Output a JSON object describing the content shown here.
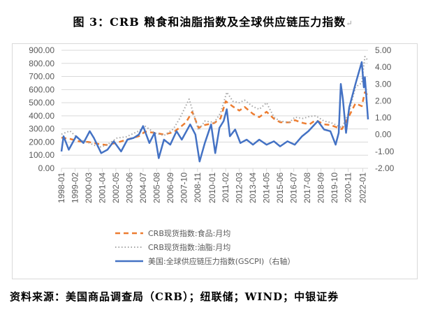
{
  "title": "图 3：CRB 粮食和油脂指数及全球供应链压力指数",
  "source": "资料来源：美国商品调查局（CRB）；纽联储；WIND；中银证券",
  "colors": {
    "food": "#ED7D31",
    "oil": "#A5A5A5",
    "gscpi": "#4472C4",
    "grid": "#D9D9D9"
  },
  "chart_data": {
    "type": "line",
    "title": "CRB 粮食和油脂指数及全球供应链压力指数",
    "left_axis": {
      "range": [
        0,
        900
      ],
      "ticks": [
        "0.00",
        "100.00",
        "200.00",
        "300.00",
        "400.00",
        "500.00",
        "600.00",
        "700.00",
        "800.00",
        "900.00"
      ]
    },
    "right_axis": {
      "range": [
        -2,
        5
      ],
      "ticks": [
        "-2.00",
        "-1.00",
        "0.00",
        "1.00",
        "2.00",
        "3.00",
        "4.00",
        "5.00"
      ]
    },
    "x_range": [
      "1998-01",
      "2022-06"
    ],
    "x_ticks": [
      "1998-01",
      "1999-02",
      "2000-03",
      "2001-04",
      "2002-05",
      "2003-06",
      "2004-07",
      "2005-08",
      "2006-09",
      "2007-10",
      "2008-11",
      "2010-01",
      "2011-02",
      "2012-03",
      "2013-04",
      "2014-05",
      "2015-06",
      "2016-07",
      "2017-08",
      "2018-09",
      "2019-10",
      "2020-11",
      "2022-01"
    ],
    "grid": true,
    "legend_position": "bottom",
    "series": [
      {
        "name": "CRB现货指数:食品:月均",
        "axis": "left",
        "style": "dashed",
        "points": [
          [
            "1998-01",
            234
          ],
          [
            "1998-09",
            225
          ],
          [
            "1999-06",
            205
          ],
          [
            "2000-03",
            200
          ],
          [
            "2001-01",
            185
          ],
          [
            "2001-08",
            178
          ],
          [
            "2002-06",
            195
          ],
          [
            "2003-03",
            218
          ],
          [
            "2004-03",
            245
          ],
          [
            "2004-09",
            280
          ],
          [
            "2005-06",
            270
          ],
          [
            "2006-03",
            258
          ],
          [
            "2006-12",
            275
          ],
          [
            "2007-06",
            310
          ],
          [
            "2007-12",
            350
          ],
          [
            "2008-06",
            431
          ],
          [
            "2008-12",
            309
          ],
          [
            "2009-06",
            330
          ],
          [
            "2010-03",
            345
          ],
          [
            "2010-09",
            380
          ],
          [
            "2011-02",
            511
          ],
          [
            "2011-09",
            470
          ],
          [
            "2012-03",
            440
          ],
          [
            "2012-08",
            468
          ],
          [
            "2013-04",
            415
          ],
          [
            "2013-10",
            390
          ],
          [
            "2014-05",
            431
          ],
          [
            "2014-12",
            378
          ],
          [
            "2015-06",
            351
          ],
          [
            "2016-03",
            350
          ],
          [
            "2016-08",
            367
          ],
          [
            "2017-04",
            345
          ],
          [
            "2017-10",
            335
          ],
          [
            "2018-04",
            367
          ],
          [
            "2018-12",
            335
          ],
          [
            "2019-06",
            330
          ],
          [
            "2020-05",
            298
          ],
          [
            "2020-12",
            400
          ],
          [
            "2021-06",
            495
          ],
          [
            "2021-12",
            474
          ],
          [
            "2022-03",
            580
          ],
          [
            "2022-06",
            554
          ]
        ]
      },
      {
        "name": "CRB现货指数:油脂:月均",
        "axis": "left",
        "style": "dotted",
        "points": [
          [
            "1998-01",
            260
          ],
          [
            "1998-09",
            285
          ],
          [
            "1999-06",
            220
          ],
          [
            "2000-03",
            195
          ],
          [
            "2001-01",
            160
          ],
          [
            "2001-08",
            175
          ],
          [
            "2002-06",
            230
          ],
          [
            "2003-03",
            240
          ],
          [
            "2004-03",
            285
          ],
          [
            "2004-09",
            320
          ],
          [
            "2005-06",
            270
          ],
          [
            "2006-03",
            250
          ],
          [
            "2006-12",
            300
          ],
          [
            "2007-06",
            380
          ],
          [
            "2008-03",
            527
          ],
          [
            "2008-12",
            290
          ],
          [
            "2009-06",
            360
          ],
          [
            "2010-03",
            350
          ],
          [
            "2010-09",
            420
          ],
          [
            "2011-03",
            580
          ],
          [
            "2011-09",
            510
          ],
          [
            "2012-03",
            500
          ],
          [
            "2012-08",
            520
          ],
          [
            "2013-04",
            470
          ],
          [
            "2013-10",
            450
          ],
          [
            "2014-05",
            500
          ],
          [
            "2014-12",
            390
          ],
          [
            "2015-06",
            360
          ],
          [
            "2016-03",
            350
          ],
          [
            "2016-08",
            390
          ],
          [
            "2017-04",
            380
          ],
          [
            "2017-10",
            395
          ],
          [
            "2018-04",
            400
          ],
          [
            "2018-12",
            360
          ],
          [
            "2019-06",
            350
          ],
          [
            "2020-05",
            310
          ],
          [
            "2020-12",
            430
          ],
          [
            "2021-06",
            620
          ],
          [
            "2021-12",
            650
          ],
          [
            "2022-03",
            852
          ],
          [
            "2022-06",
            820
          ]
        ]
      },
      {
        "name": "美国:全球供应链压力指数(GSCPI)（右轴）",
        "axis": "right",
        "style": "solid",
        "points": [
          [
            "1998-01",
            -1.0
          ],
          [
            "1998-03",
            -0.1
          ],
          [
            "1998-08",
            -0.9
          ],
          [
            "1999-03",
            -0.1
          ],
          [
            "1999-10",
            -0.5
          ],
          [
            "2000-04",
            0.2
          ],
          [
            "2000-08",
            -0.2
          ],
          [
            "2001-03",
            -1.1
          ],
          [
            "2001-09",
            -0.9
          ],
          [
            "2002-03",
            -0.4
          ],
          [
            "2002-10",
            -1.0
          ],
          [
            "2003-04",
            -0.3
          ],
          [
            "2003-10",
            -0.2
          ],
          [
            "2004-03",
            0.0
          ],
          [
            "2004-07",
            0.5
          ],
          [
            "2005-01",
            -0.5
          ],
          [
            "2005-06",
            0.1
          ],
          [
            "2005-10",
            -1.4
          ],
          [
            "2006-03",
            -0.3
          ],
          [
            "2006-09",
            -0.6
          ],
          [
            "2007-03",
            0.2
          ],
          [
            "2007-08",
            -0.3
          ],
          [
            "2008-04",
            0.6
          ],
          [
            "2008-09",
            0.0
          ],
          [
            "2009-01",
            -1.6
          ],
          [
            "2009-06",
            -0.5
          ],
          [
            "2009-12",
            0.6
          ],
          [
            "2010-04",
            -1.1
          ],
          [
            "2010-08",
            0.4
          ],
          [
            "2010-12",
            0.8
          ],
          [
            "2011-03",
            1.5
          ],
          [
            "2011-06",
            -0.1
          ],
          [
            "2011-11",
            0.3
          ],
          [
            "2012-04",
            -0.5
          ],
          [
            "2012-10",
            -0.3
          ],
          [
            "2013-04",
            -0.6
          ],
          [
            "2013-10",
            -0.3
          ],
          [
            "2014-05",
            -0.6
          ],
          [
            "2014-12",
            -0.4
          ],
          [
            "2015-06",
            -0.7
          ],
          [
            "2016-01",
            -0.4
          ],
          [
            "2016-08",
            -0.6
          ],
          [
            "2017-03",
            -0.1
          ],
          [
            "2017-09",
            0.2
          ],
          [
            "2018-06",
            0.8
          ],
          [
            "2018-12",
            0.3
          ],
          [
            "2019-06",
            0.2
          ],
          [
            "2019-11",
            -0.6
          ],
          [
            "2020-02",
            0.1
          ],
          [
            "2020-04",
            3.0
          ],
          [
            "2020-06",
            2.1
          ],
          [
            "2020-09",
            0.1
          ],
          [
            "2020-12",
            1.6
          ],
          [
            "2021-06",
            3.0
          ],
          [
            "2021-12",
            4.3
          ],
          [
            "2022-02",
            2.8
          ],
          [
            "2022-03",
            3.4
          ],
          [
            "2022-06",
            0.9
          ]
        ]
      }
    ]
  }
}
